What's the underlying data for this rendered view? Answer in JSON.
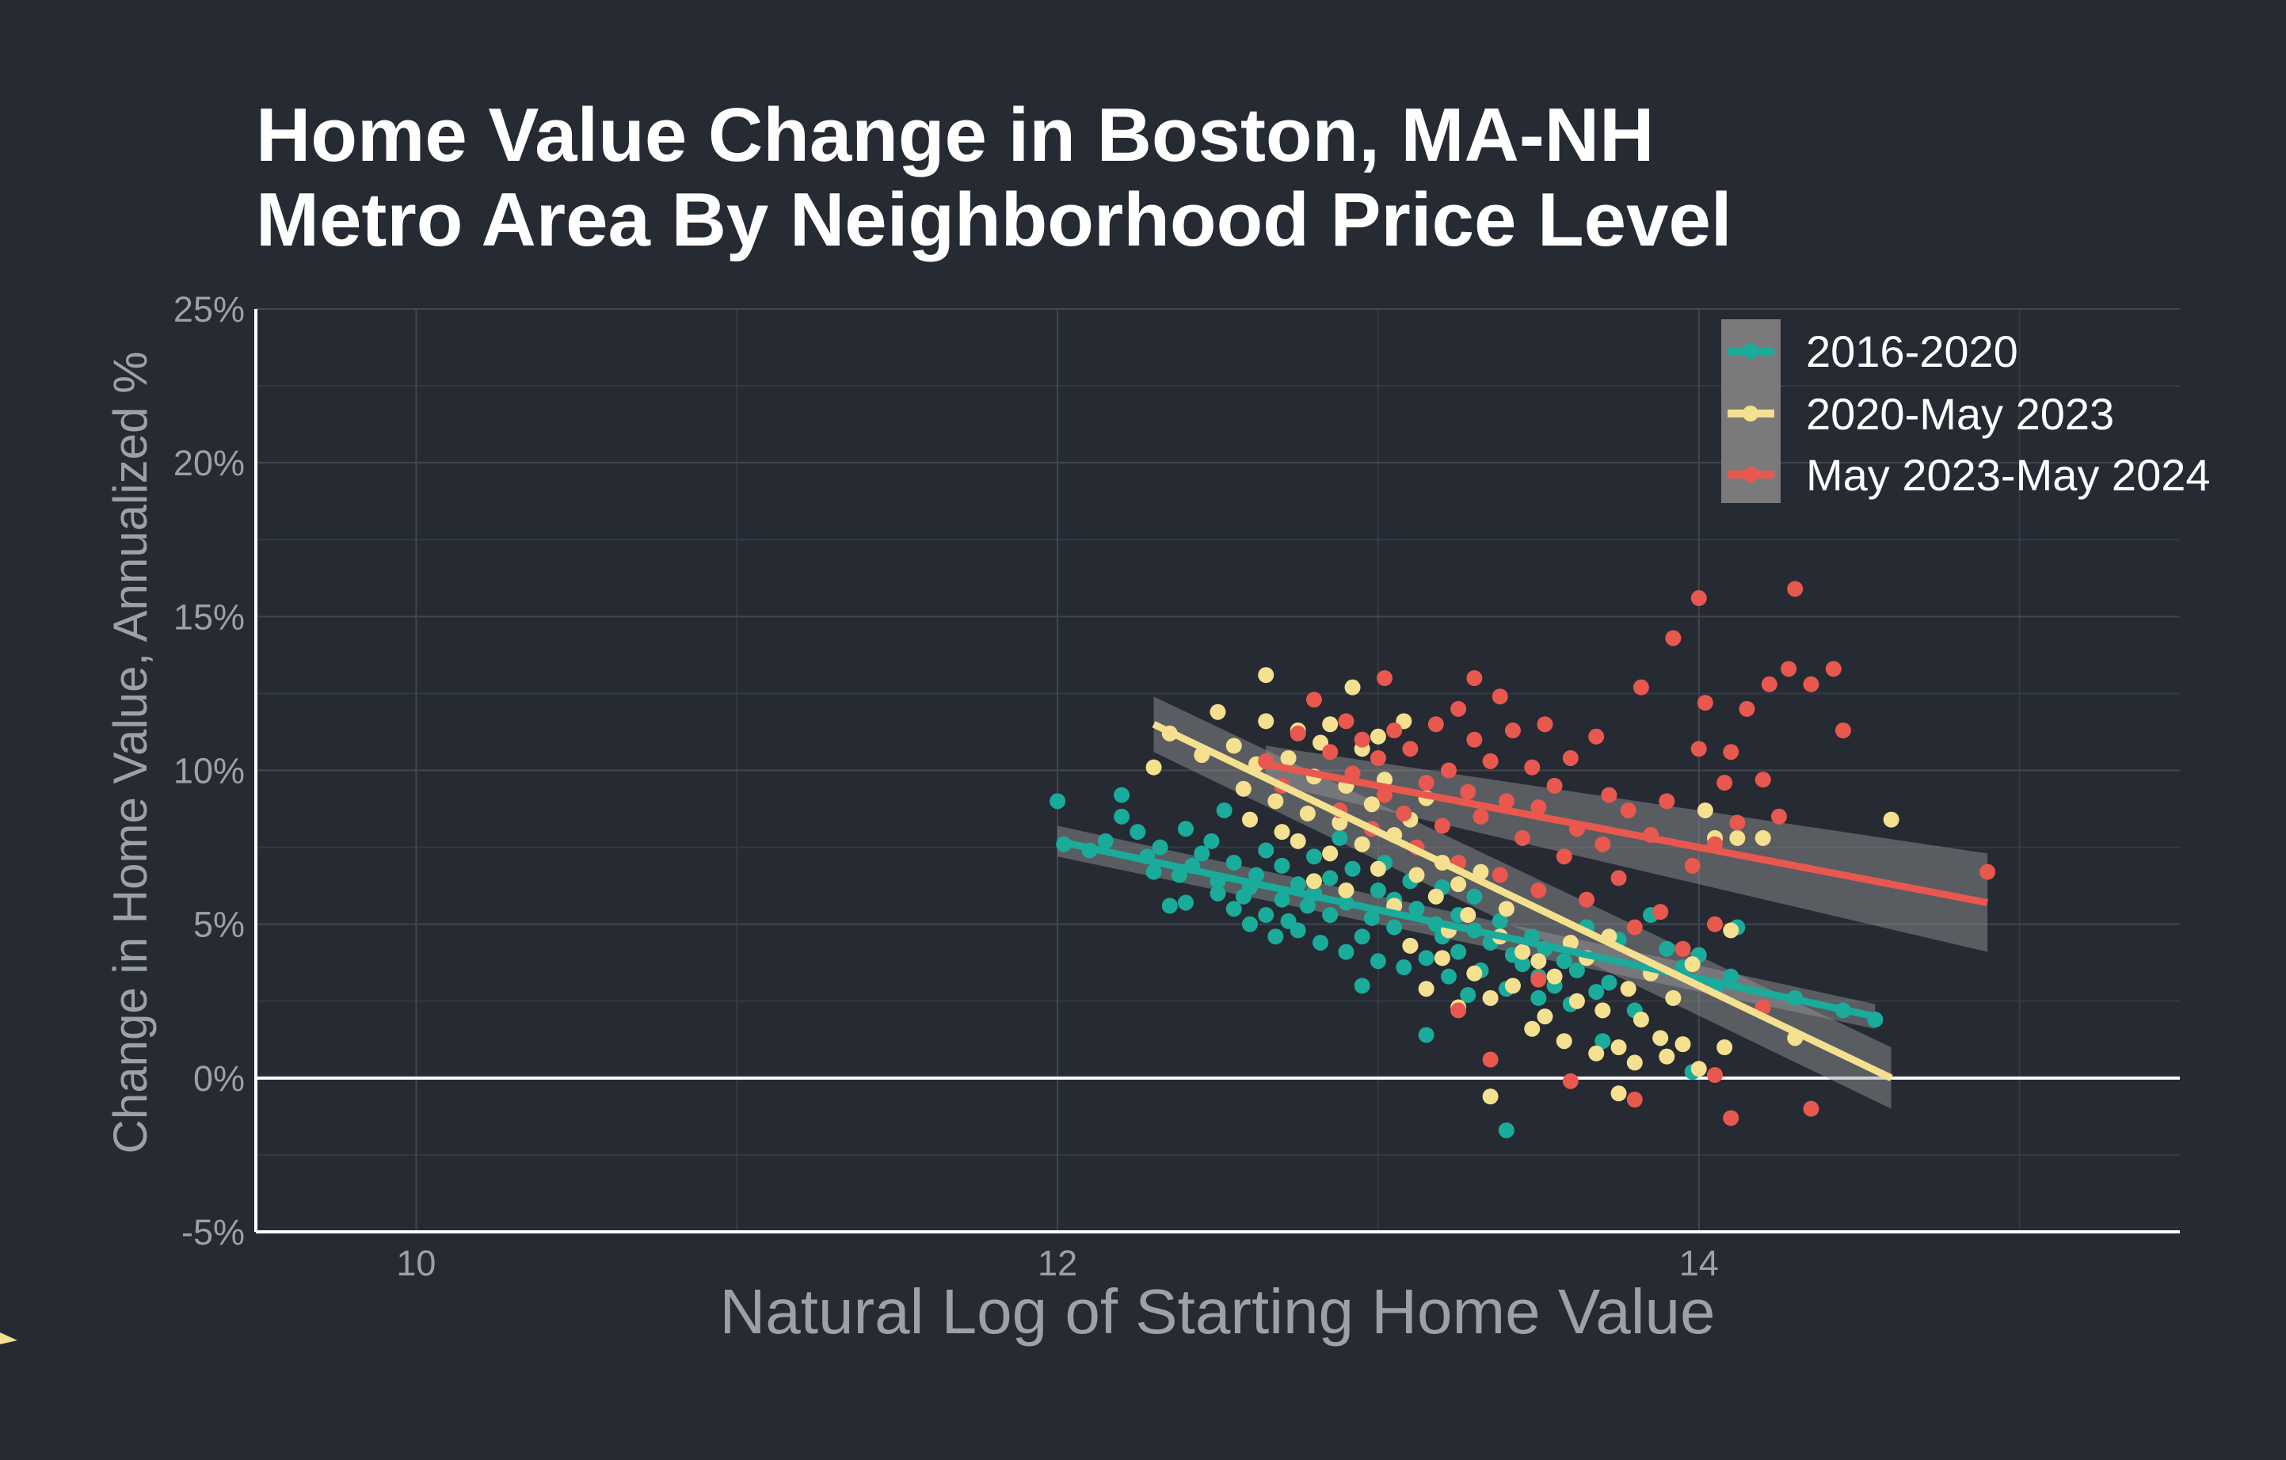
{
  "title_lines": [
    "Home Value Change in Boston, MA-NH",
    "Metro Area By Neighborhood Price Level"
  ],
  "chart_data": {
    "type": "scatter",
    "title": "Home Value Change in Boston, MA-NH Metro Area By Neighborhood Price Level",
    "xlabel": "Natural Log of Starting Home Value",
    "ylabel": "Change in Home Value, Annualized %",
    "xlim": [
      9.5,
      15.5
    ],
    "ylim": [
      -5,
      25
    ],
    "x_ticks": [
      10,
      12,
      14
    ],
    "x_tick_labels": [
      "10",
      "12",
      "14"
    ],
    "y_ticks": [
      -5,
      0,
      5,
      10,
      15,
      20,
      25
    ],
    "y_tick_labels": [
      "-5%",
      "0%",
      "5%",
      "10%",
      "15%",
      "20%",
      "25%"
    ],
    "grid": true,
    "reference_line_y": 0,
    "legend_position": "top-right",
    "series": [
      {
        "name": "2016-2020",
        "color": "#1aab9b",
        "trend": {
          "x": [
            12.0,
            14.55
          ],
          "y": [
            7.7,
            2.0
          ],
          "ci_halfwidth": [
            0.5,
            0.4
          ]
        },
        "points": [
          [
            12.0,
            9.0
          ],
          [
            12.02,
            7.6
          ],
          [
            12.1,
            7.4
          ],
          [
            12.15,
            7.7
          ],
          [
            12.2,
            9.2
          ],
          [
            12.2,
            8.5
          ],
          [
            12.25,
            8.0
          ],
          [
            12.28,
            7.2
          ],
          [
            12.3,
            6.7
          ],
          [
            12.32,
            7.5
          ],
          [
            12.35,
            5.6
          ],
          [
            12.38,
            6.6
          ],
          [
            12.4,
            8.1
          ],
          [
            12.4,
            5.7
          ],
          [
            12.42,
            6.9
          ],
          [
            12.45,
            7.3
          ],
          [
            12.48,
            7.7
          ],
          [
            12.5,
            6.0
          ],
          [
            12.5,
            6.4
          ],
          [
            12.52,
            8.7
          ],
          [
            12.55,
            7.0
          ],
          [
            12.55,
            5.5
          ],
          [
            12.58,
            5.9
          ],
          [
            12.6,
            6.2
          ],
          [
            12.6,
            5.0
          ],
          [
            12.62,
            6.6
          ],
          [
            12.65,
            7.4
          ],
          [
            12.65,
            5.3
          ],
          [
            12.68,
            4.6
          ],
          [
            12.7,
            5.8
          ],
          [
            12.7,
            6.9
          ],
          [
            12.72,
            5.1
          ],
          [
            12.75,
            6.3
          ],
          [
            12.75,
            4.8
          ],
          [
            12.78,
            5.6
          ],
          [
            12.8,
            7.2
          ],
          [
            12.8,
            6.0
          ],
          [
            12.82,
            4.4
          ],
          [
            12.85,
            5.3
          ],
          [
            12.85,
            6.5
          ],
          [
            12.88,
            7.8
          ],
          [
            12.9,
            4.1
          ],
          [
            12.9,
            5.7
          ],
          [
            12.92,
            6.8
          ],
          [
            12.95,
            3.0
          ],
          [
            12.95,
            4.6
          ],
          [
            12.98,
            5.2
          ],
          [
            13.0,
            6.1
          ],
          [
            13.0,
            3.8
          ],
          [
            13.02,
            7.0
          ],
          [
            13.05,
            4.9
          ],
          [
            13.05,
            5.8
          ],
          [
            13.08,
            3.6
          ],
          [
            13.1,
            6.4
          ],
          [
            13.1,
            4.3
          ],
          [
            13.12,
            5.5
          ],
          [
            13.15,
            1.4
          ],
          [
            13.15,
            3.9
          ],
          [
            13.18,
            5.0
          ],
          [
            13.2,
            4.6
          ],
          [
            13.2,
            6.2
          ],
          [
            13.22,
            3.3
          ],
          [
            13.25,
            5.3
          ],
          [
            13.25,
            4.1
          ],
          [
            13.28,
            2.7
          ],
          [
            13.3,
            4.8
          ],
          [
            13.3,
            5.9
          ],
          [
            13.32,
            3.5
          ],
          [
            13.35,
            4.4
          ],
          [
            13.38,
            5.1
          ],
          [
            13.4,
            2.9
          ],
          [
            13.4,
            -1.7
          ],
          [
            13.42,
            4.0
          ],
          [
            13.45,
            3.7
          ],
          [
            13.48,
            4.6
          ],
          [
            13.5,
            2.6
          ],
          [
            13.5,
            3.3
          ],
          [
            13.52,
            4.2
          ],
          [
            13.55,
            3.0
          ],
          [
            13.58,
            3.8
          ],
          [
            13.6,
            2.4
          ],
          [
            13.62,
            3.5
          ],
          [
            13.65,
            4.9
          ],
          [
            13.68,
            2.8
          ],
          [
            13.7,
            1.2
          ],
          [
            13.72,
            3.1
          ],
          [
            13.75,
            4.5
          ],
          [
            13.8,
            2.2
          ],
          [
            13.85,
            5.3
          ],
          [
            13.9,
            4.2
          ],
          [
            13.95,
            3.6
          ],
          [
            13.98,
            0.2
          ],
          [
            14.0,
            4.0
          ],
          [
            14.05,
            2.9
          ],
          [
            14.1,
            3.3
          ],
          [
            14.12,
            4.9
          ],
          [
            14.2,
            2.3
          ],
          [
            14.3,
            2.6
          ],
          [
            14.45,
            2.2
          ],
          [
            14.55,
            1.9
          ]
        ]
      },
      {
        "name": "2020-May 2023",
        "color": "#f4e08e",
        "trend": {
          "x": [
            12.3,
            14.6
          ],
          "y": [
            11.5,
            0.0
          ],
          "ci_halfwidth": [
            0.9,
            1.0
          ]
        },
        "points": [
          [
            12.3,
            10.1
          ],
          [
            12.35,
            11.2
          ],
          [
            12.45,
            10.5
          ],
          [
            12.5,
            11.9
          ],
          [
            12.55,
            10.8
          ],
          [
            12.58,
            9.4
          ],
          [
            12.6,
            8.4
          ],
          [
            12.62,
            10.2
          ],
          [
            12.65,
            13.1
          ],
          [
            12.65,
            11.6
          ],
          [
            12.68,
            9.0
          ],
          [
            12.7,
            8.0
          ],
          [
            12.72,
            10.4
          ],
          [
            12.75,
            11.3
          ],
          [
            12.75,
            7.7
          ],
          [
            12.78,
            8.6
          ],
          [
            12.8,
            9.8
          ],
          [
            12.8,
            6.4
          ],
          [
            12.82,
            10.9
          ],
          [
            12.85,
            11.5
          ],
          [
            12.85,
            7.3
          ],
          [
            12.88,
            8.3
          ],
          [
            12.9,
            9.5
          ],
          [
            12.9,
            6.1
          ],
          [
            12.92,
            12.7
          ],
          [
            12.95,
            10.7
          ],
          [
            12.95,
            7.6
          ],
          [
            12.98,
            8.9
          ],
          [
            13.0,
            11.1
          ],
          [
            13.0,
            6.8
          ],
          [
            13.02,
            9.7
          ],
          [
            13.05,
            7.9
          ],
          [
            13.05,
            5.6
          ],
          [
            13.08,
            11.6
          ],
          [
            13.1,
            8.4
          ],
          [
            13.1,
            4.3
          ],
          [
            13.12,
            6.6
          ],
          [
            13.15,
            9.1
          ],
          [
            13.15,
            2.9
          ],
          [
            13.18,
            5.9
          ],
          [
            13.2,
            7.0
          ],
          [
            13.2,
            3.9
          ],
          [
            13.22,
            4.8
          ],
          [
            13.25,
            6.3
          ],
          [
            13.25,
            2.3
          ],
          [
            13.28,
            5.3
          ],
          [
            13.3,
            3.4
          ],
          [
            13.32,
            6.7
          ],
          [
            13.35,
            2.6
          ],
          [
            13.35,
            -0.6
          ],
          [
            13.38,
            4.6
          ],
          [
            13.4,
            5.5
          ],
          [
            13.42,
            3.0
          ],
          [
            13.45,
            4.1
          ],
          [
            13.48,
            1.6
          ],
          [
            13.5,
            3.8
          ],
          [
            13.52,
            2.0
          ],
          [
            13.55,
            3.3
          ],
          [
            13.58,
            1.2
          ],
          [
            13.6,
            4.4
          ],
          [
            13.62,
            2.5
          ],
          [
            13.65,
            3.9
          ],
          [
            13.68,
            0.8
          ],
          [
            13.7,
            2.2
          ],
          [
            13.72,
            4.6
          ],
          [
            13.75,
            1.0
          ],
          [
            13.75,
            -0.5
          ],
          [
            13.78,
            2.9
          ],
          [
            13.8,
            0.5
          ],
          [
            13.82,
            1.9
          ],
          [
            13.85,
            3.4
          ],
          [
            13.88,
            1.3
          ],
          [
            13.9,
            0.7
          ],
          [
            13.92,
            2.6
          ],
          [
            13.95,
            1.1
          ],
          [
            13.98,
            3.7
          ],
          [
            14.0,
            0.3
          ],
          [
            14.02,
            8.7
          ],
          [
            14.05,
            7.8
          ],
          [
            14.08,
            1.0
          ],
          [
            14.1,
            4.8
          ],
          [
            14.12,
            7.8
          ],
          [
            14.2,
            7.8
          ],
          [
            14.3,
            1.3
          ],
          [
            14.6,
            8.4
          ]
        ]
      },
      {
        "name": "May 2023-May 2024",
        "color": "#e8584f",
        "trend": {
          "x": [
            12.65,
            14.9
          ],
          "y": [
            10.2,
            5.7
          ],
          "ci_halfwidth": [
            0.6,
            1.6
          ]
        },
        "points": [
          [
            12.65,
            10.3
          ],
          [
            12.7,
            9.5
          ],
          [
            12.75,
            11.2
          ],
          [
            12.8,
            12.3
          ],
          [
            12.85,
            10.6
          ],
          [
            12.88,
            8.7
          ],
          [
            12.9,
            11.6
          ],
          [
            12.92,
            9.9
          ],
          [
            12.95,
            11.0
          ],
          [
            12.98,
            8.1
          ],
          [
            13.0,
            10.4
          ],
          [
            13.02,
            13.0
          ],
          [
            13.02,
            9.2
          ],
          [
            13.05,
            11.3
          ],
          [
            13.08,
            8.6
          ],
          [
            13.1,
            10.7
          ],
          [
            13.12,
            7.5
          ],
          [
            13.15,
            9.6
          ],
          [
            13.18,
            11.5
          ],
          [
            13.2,
            8.2
          ],
          [
            13.22,
            10.0
          ],
          [
            13.25,
            12.0
          ],
          [
            13.25,
            7.0
          ],
          [
            13.28,
            9.3
          ],
          [
            13.3,
            13.0
          ],
          [
            13.3,
            11.0
          ],
          [
            13.32,
            8.5
          ],
          [
            13.35,
            10.3
          ],
          [
            13.38,
            12.4
          ],
          [
            13.38,
            6.6
          ],
          [
            13.4,
            9.0
          ],
          [
            13.42,
            11.3
          ],
          [
            13.45,
            7.8
          ],
          [
            13.48,
            10.1
          ],
          [
            13.5,
            8.8
          ],
          [
            13.5,
            6.1
          ],
          [
            13.52,
            11.5
          ],
          [
            13.55,
            9.5
          ],
          [
            13.58,
            7.2
          ],
          [
            13.6,
            10.4
          ],
          [
            13.62,
            8.1
          ],
          [
            13.65,
            5.8
          ],
          [
            13.68,
            11.1
          ],
          [
            13.7,
            7.6
          ],
          [
            13.72,
            9.2
          ],
          [
            13.75,
            6.5
          ],
          [
            13.78,
            8.7
          ],
          [
            13.8,
            4.9
          ],
          [
            13.82,
            12.7
          ],
          [
            13.85,
            7.9
          ],
          [
            13.88,
            5.4
          ],
          [
            13.9,
            9.0
          ],
          [
            13.92,
            14.3
          ],
          [
            13.95,
            4.2
          ],
          [
            13.98,
            6.9
          ],
          [
            14.0,
            10.7
          ],
          [
            14.0,
            15.6
          ],
          [
            14.02,
            12.2
          ],
          [
            14.05,
            7.6
          ],
          [
            14.08,
            9.6
          ],
          [
            14.1,
            10.6
          ],
          [
            14.12,
            8.3
          ],
          [
            14.15,
            12.0
          ],
          [
            14.2,
            9.7
          ],
          [
            14.22,
            12.8
          ],
          [
            14.25,
            8.5
          ],
          [
            14.28,
            13.3
          ],
          [
            14.3,
            15.9
          ],
          [
            14.35,
            12.8
          ],
          [
            14.42,
            13.3
          ],
          [
            14.45,
            11.3
          ],
          [
            14.9,
            6.7
          ],
          [
            13.35,
            0.6
          ],
          [
            13.6,
            -0.1
          ],
          [
            13.8,
            -0.7
          ],
          [
            14.05,
            0.1
          ],
          [
            14.1,
            -1.3
          ],
          [
            14.35,
            -1.0
          ],
          [
            13.25,
            2.2
          ],
          [
            13.5,
            3.2
          ],
          [
            14.05,
            5.0
          ],
          [
            14.2,
            2.3
          ]
        ]
      }
    ]
  }
}
